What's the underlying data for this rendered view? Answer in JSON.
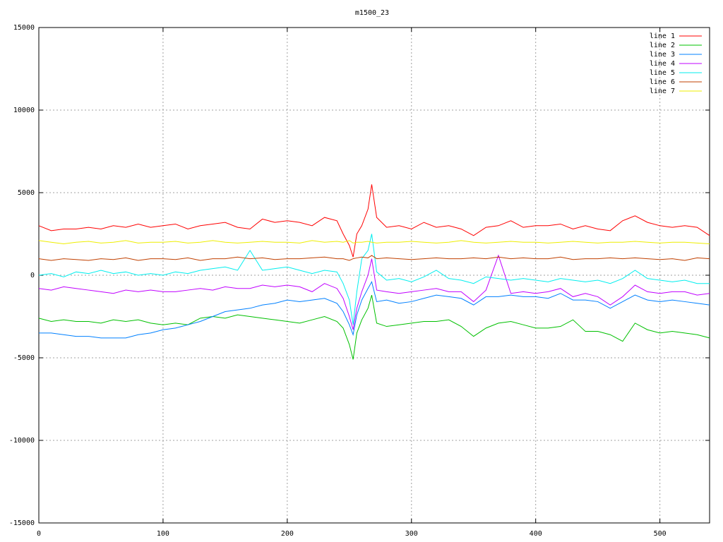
{
  "chart_data": {
    "type": "line",
    "title": "m1500_23",
    "x": [
      0,
      10,
      20,
      30,
      40,
      50,
      60,
      70,
      80,
      90,
      100,
      110,
      120,
      130,
      140,
      150,
      160,
      170,
      180,
      190,
      200,
      210,
      220,
      230,
      240,
      245,
      250,
      253,
      256,
      260,
      265,
      268,
      272,
      280,
      290,
      300,
      310,
      320,
      330,
      340,
      350,
      360,
      370,
      380,
      390,
      400,
      410,
      420,
      430,
      440,
      450,
      460,
      470,
      480,
      490,
      500,
      510,
      520,
      530,
      540
    ],
    "xlim": [
      0,
      540
    ],
    "xticks": [
      0,
      100,
      200,
      300,
      400,
      500
    ],
    "ylim": [
      -15000,
      15000
    ],
    "yticks": [
      -15000,
      -10000,
      -5000,
      0,
      5000,
      10000,
      15000
    ],
    "grid": true,
    "legend": "top-right",
    "series": [
      {
        "name": "line 1",
        "color": "#ff0000",
        "values": [
          3000,
          2700,
          2800,
          2800,
          2900,
          2800,
          3000,
          2900,
          3100,
          2900,
          3000,
          3100,
          2800,
          3000,
          3100,
          3200,
          2900,
          2800,
          3400,
          3200,
          3300,
          3200,
          3000,
          3500,
          3300,
          2500,
          1800,
          1100,
          2500,
          3000,
          4000,
          5500,
          3500,
          2900,
          3000,
          2800,
          3200,
          2900,
          3000,
          2800,
          2400,
          2900,
          3000,
          3300,
          2900,
          3000,
          3000,
          3100,
          2800,
          3000,
          2800,
          2700,
          3300,
          3600,
          3200,
          3000,
          2900,
          3000,
          2900,
          2400
        ]
      },
      {
        "name": "line 2",
        "color": "#00c000",
        "values": [
          -2600,
          -2800,
          -2700,
          -2800,
          -2800,
          -2900,
          -2700,
          -2800,
          -2700,
          -2900,
          -3000,
          -2900,
          -3000,
          -2600,
          -2500,
          -2600,
          -2400,
          -2500,
          -2600,
          -2700,
          -2800,
          -2900,
          -2700,
          -2500,
          -2800,
          -3200,
          -4200,
          -5100,
          -3500,
          -2700,
          -2000,
          -1200,
          -2900,
          -3100,
          -3000,
          -2900,
          -2800,
          -2800,
          -2700,
          -3100,
          -3700,
          -3200,
          -2900,
          -2800,
          -3000,
          -3200,
          -3200,
          -3100,
          -2700,
          -3400,
          -3400,
          -3600,
          -4000,
          -2900,
          -3300,
          -3500,
          -3400,
          -3500,
          -3600,
          -3800
        ]
      },
      {
        "name": "line 3",
        "color": "#0080ff",
        "values": [
          -3500,
          -3500,
          -3600,
          -3700,
          -3700,
          -3800,
          -3800,
          -3800,
          -3600,
          -3500,
          -3300,
          -3200,
          -3000,
          -2800,
          -2500,
          -2200,
          -2100,
          -2000,
          -1800,
          -1700,
          -1500,
          -1600,
          -1500,
          -1400,
          -1700,
          -2200,
          -3000,
          -3600,
          -2400,
          -1500,
          -800,
          -400,
          -1600,
          -1500,
          -1700,
          -1600,
          -1400,
          -1200,
          -1300,
          -1400,
          -1800,
          -1300,
          -1300,
          -1200,
          -1300,
          -1300,
          -1400,
          -1100,
          -1500,
          -1500,
          -1600,
          -2000,
          -1600,
          -1200,
          -1500,
          -1600,
          -1500,
          -1600,
          -1700,
          -1800
        ]
      },
      {
        "name": "line 4",
        "color": "#c000ff",
        "values": [
          -800,
          -900,
          -700,
          -800,
          -900,
          -1000,
          -1100,
          -900,
          -1000,
          -900,
          -1000,
          -1000,
          -900,
          -800,
          -900,
          -700,
          -800,
          -800,
          -600,
          -700,
          -600,
          -700,
          -1000,
          -500,
          -800,
          -1400,
          -2500,
          -3300,
          -2000,
          -1000,
          0,
          1000,
          -900,
          -1000,
          -1100,
          -1000,
          -900,
          -800,
          -1000,
          -1000,
          -1600,
          -900,
          1200,
          -1100,
          -1000,
          -1100,
          -1000,
          -800,
          -1300,
          -1100,
          -1300,
          -1800,
          -1300,
          -600,
          -1000,
          -1100,
          -1000,
          -1000,
          -1200,
          -1100
        ]
      },
      {
        "name": "line 5",
        "color": "#00eeee",
        "values": [
          0,
          100,
          -100,
          200,
          100,
          300,
          100,
          200,
          0,
          100,
          0,
          200,
          100,
          300,
          400,
          500,
          300,
          1500,
          300,
          400,
          500,
          300,
          100,
          300,
          200,
          -500,
          -1500,
          -3000,
          -1000,
          1000,
          1500,
          2500,
          200,
          -300,
          -200,
          -400,
          -100,
          300,
          -200,
          -300,
          -500,
          -100,
          -200,
          -300,
          -200,
          -300,
          -400,
          -200,
          -300,
          -400,
          -300,
          -500,
          -200,
          300,
          -200,
          -300,
          -400,
          -300,
          -500,
          -500
        ]
      },
      {
        "name": "line 6",
        "color": "#c04000",
        "values": [
          1000,
          900,
          1000,
          950,
          900,
          1000,
          950,
          1050,
          900,
          1000,
          1000,
          950,
          1050,
          900,
          1000,
          1000,
          1100,
          1000,
          1050,
          950,
          1000,
          1000,
          1050,
          1100,
          1000,
          1000,
          900,
          1000,
          1050,
          1100,
          1050,
          1200,
          1000,
          1050,
          1000,
          950,
          1000,
          1050,
          1000,
          1000,
          1050,
          1000,
          1100,
          1000,
          1050,
          1000,
          1000,
          1100,
          950,
          1000,
          1000,
          1050,
          1000,
          1050,
          1000,
          950,
          1000,
          900,
          1050,
          1000
        ]
      },
      {
        "name": "line 7",
        "color": "#eeee00",
        "values": [
          2100,
          2000,
          1900,
          2000,
          2050,
          1950,
          2000,
          2100,
          1950,
          2000,
          2000,
          2050,
          1950,
          2000,
          2100,
          2000,
          1950,
          2000,
          2050,
          2000,
          2000,
          1950,
          2100,
          2000,
          2050,
          2000,
          2100,
          1950,
          2000,
          2000,
          2050,
          2000,
          1950,
          2000,
          2000,
          2050,
          2000,
          1950,
          2000,
          2100,
          2000,
          1950,
          2000,
          2050,
          2000,
          2000,
          1950,
          2000,
          2050,
          2000,
          1950,
          2000,
          2000,
          2050,
          2000,
          1950,
          2000,
          2000,
          1950,
          1900
        ]
      }
    ]
  }
}
